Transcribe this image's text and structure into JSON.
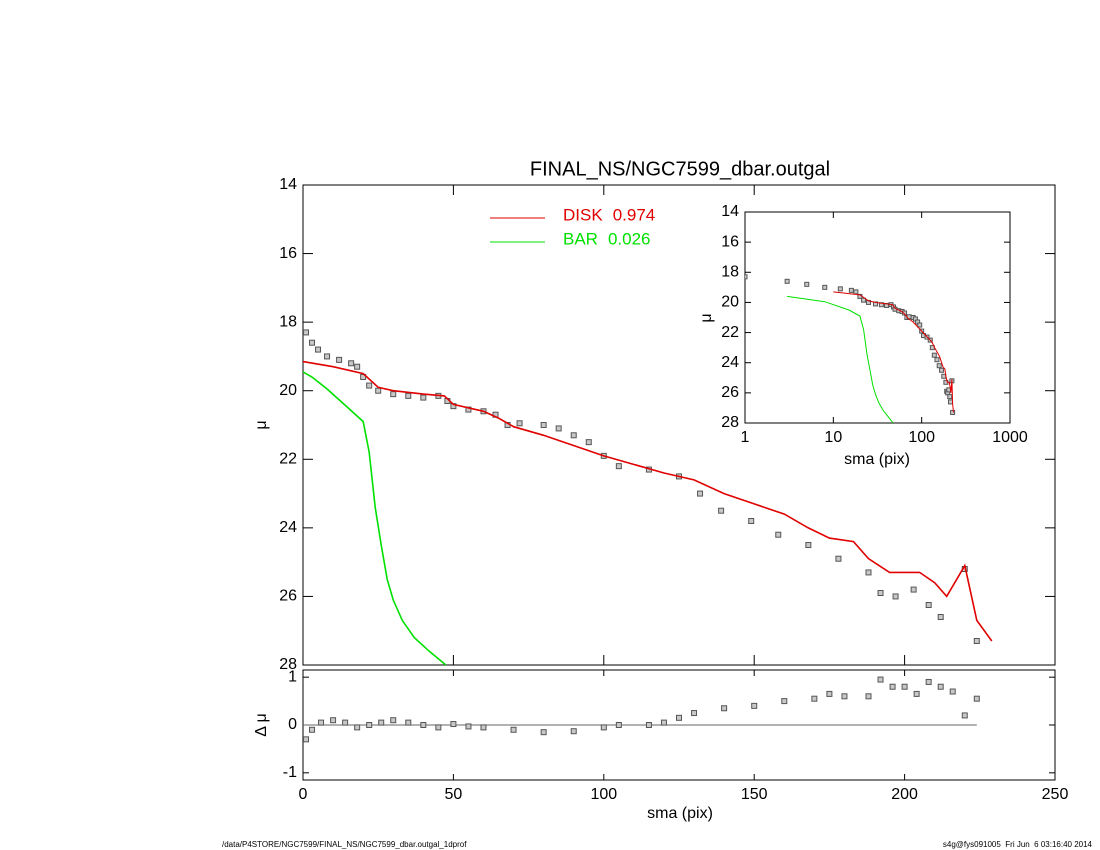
{
  "footer": {
    "left": "/data/P4STORE/NGC7599/FINAL_NS/NGC7599_dbar.outgal_1dprof",
    "right": "s4g@fys091005  Fri Jun  6 03:16:40 2014"
  },
  "chart_data": [
    {
      "type": "line",
      "title": "FINAL_NS/NGC7599_dbar.outgal",
      "ylabel": "μ",
      "xlim": [
        0,
        250
      ],
      "xticks": [
        0,
        50,
        100,
        150,
        200,
        250
      ],
      "ylim": [
        28,
        14
      ],
      "yticks": [
        14,
        16,
        18,
        20,
        22,
        24,
        26,
        28
      ],
      "series": [
        {
          "marker": "square",
          "color": "#555555",
          "x": [
            1,
            3,
            5,
            8,
            12,
            16,
            18,
            20,
            22,
            25,
            30,
            35,
            40,
            45,
            48,
            50,
            55,
            60,
            64,
            68,
            72,
            80,
            85,
            90,
            95,
            100,
            105,
            115,
            125,
            132,
            139,
            149,
            158,
            168,
            178,
            188,
            192,
            197,
            203,
            208,
            212,
            220,
            224
          ],
          "values": [
            18.3,
            18.6,
            18.8,
            19.0,
            19.1,
            19.2,
            19.3,
            19.6,
            19.85,
            20.0,
            20.1,
            20.15,
            20.2,
            20.15,
            20.3,
            20.45,
            20.55,
            20.6,
            20.7,
            21.0,
            20.95,
            21.0,
            21.1,
            21.3,
            21.5,
            21.9,
            22.2,
            22.3,
            22.5,
            23.0,
            23.5,
            23.8,
            24.2,
            24.5,
            24.9,
            25.3,
            25.9,
            26.0,
            25.8,
            26.25,
            26.6,
            25.2,
            27.3
          ]
        },
        {
          "name": "DISK",
          "weight": 0.974,
          "color": "#e00000",
          "x": [
            0,
            10,
            20,
            25,
            30,
            40,
            47,
            50,
            60,
            65,
            70,
            80,
            100,
            120,
            130,
            140,
            150,
            160,
            168,
            175,
            183,
            188,
            195,
            200,
            205,
            210,
            214,
            220,
            224,
            229
          ],
          "values": [
            19.15,
            19.3,
            19.5,
            19.9,
            20.0,
            20.1,
            20.15,
            20.4,
            20.6,
            20.8,
            21.05,
            21.3,
            21.9,
            22.4,
            22.6,
            23.0,
            23.3,
            23.6,
            24.0,
            24.3,
            24.4,
            24.9,
            25.3,
            25.3,
            25.3,
            25.6,
            26.0,
            25.1,
            26.7,
            27.3
          ]
        },
        {
          "name": "BAR",
          "weight": 0.026,
          "color": "#00e000",
          "x": [
            0,
            3,
            8,
            15,
            20,
            22,
            24,
            26,
            28,
            30,
            33,
            37,
            42,
            47.5
          ],
          "values": [
            19.45,
            19.6,
            19.95,
            20.5,
            20.9,
            21.8,
            23.4,
            24.5,
            25.5,
            26.1,
            26.7,
            27.2,
            27.6,
            28
          ]
        }
      ]
    },
    {
      "type": "scatter",
      "xlabel": "sma (pix)",
      "ylabel": "Δ μ",
      "xlim": [
        0,
        250
      ],
      "xticks": [
        0,
        50,
        100,
        150,
        200,
        250
      ],
      "ylim": [
        -1.15,
        1.15
      ],
      "yticks": [
        -1,
        0,
        1
      ],
      "color": "#555555",
      "x": [
        1,
        3,
        6,
        10,
        14,
        18,
        22,
        26,
        30,
        35,
        40,
        45,
        50,
        55,
        60,
        70,
        80,
        90,
        100,
        105,
        115,
        120,
        125,
        130,
        140,
        150,
        160,
        170,
        175,
        180,
        188,
        192,
        196,
        200,
        204,
        208,
        212,
        216,
        220,
        224
      ],
      "values": [
        -0.3,
        -0.1,
        0.05,
        0.1,
        0.05,
        -0.05,
        0.0,
        0.05,
        0.1,
        0.05,
        0.0,
        -0.05,
        0.02,
        -0.03,
        -0.05,
        -0.1,
        -0.15,
        -0.13,
        -0.05,
        0.0,
        0.0,
        0.05,
        0.15,
        0.25,
        0.35,
        0.4,
        0.5,
        0.55,
        0.65,
        0.6,
        0.6,
        0.95,
        0.8,
        0.8,
        0.65,
        0.9,
        0.8,
        0.7,
        0.2,
        0.55
      ]
    },
    {
      "type": "inset",
      "xlabel": "sma (pix)",
      "ylabel": "μ",
      "xlog": true,
      "xlim": [
        1,
        1000
      ],
      "xticks": [
        1,
        10,
        100,
        1000
      ],
      "ylim": [
        28,
        14
      ],
      "yticks": [
        14,
        16,
        18,
        20,
        22,
        24,
        26,
        28
      ]
    }
  ]
}
